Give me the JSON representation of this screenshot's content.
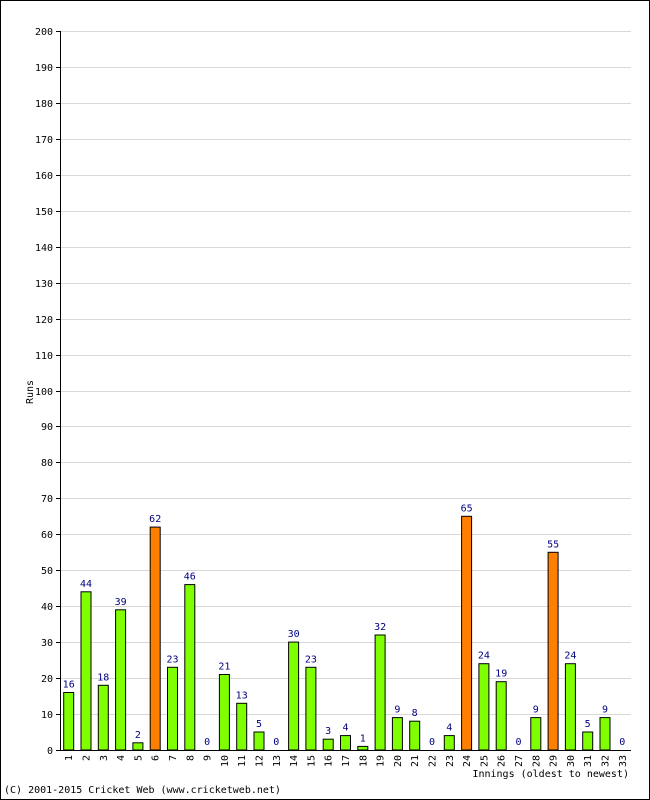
{
  "chart_data": {
    "type": "bar",
    "ylabel": "Runs",
    "xlabel": "Innings (oldest to newest)",
    "ylim": [
      0,
      200
    ],
    "ytick_step": 10,
    "grid": true,
    "categories": [
      "1",
      "2",
      "3",
      "4",
      "5",
      "6",
      "7",
      "8",
      "9",
      "10",
      "11",
      "12",
      "13",
      "14",
      "15",
      "16",
      "17",
      "18",
      "19",
      "20",
      "21",
      "22",
      "23",
      "24",
      "25",
      "26",
      "27",
      "28",
      "29",
      "30",
      "31",
      "32",
      "33"
    ],
    "values": [
      16,
      44,
      18,
      39,
      2,
      62,
      23,
      46,
      0,
      21,
      13,
      5,
      0,
      30,
      23,
      3,
      4,
      1,
      32,
      9,
      8,
      0,
      4,
      65,
      24,
      19,
      0,
      9,
      55,
      24,
      5,
      9,
      0
    ],
    "highlight_threshold": 50,
    "colors": {
      "normal": "#80ff00",
      "fifty": "#ff8000",
      "label": "#000080",
      "grid": "#d8d8d8"
    }
  },
  "footer": {
    "copyright": "(C) 2001-2015 Cricket Web (www.cricketweb.net)"
  }
}
